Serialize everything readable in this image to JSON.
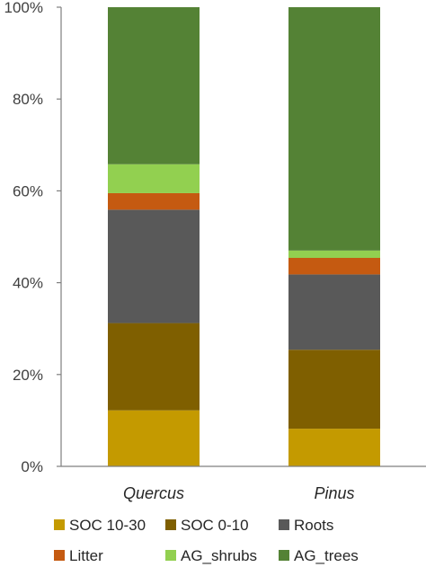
{
  "chart_data": {
    "type": "bar",
    "stacked": true,
    "normalized": true,
    "categories": [
      "Quercus",
      "Pinus"
    ],
    "series": [
      {
        "name": "SOC 10-30",
        "color": "#C49A00",
        "values": [
          12.2,
          8.2
        ]
      },
      {
        "name": "SOC 0-10",
        "color": "#7F5F00",
        "values": [
          19.0,
          17.2
        ]
      },
      {
        "name": "Roots",
        "color": "#595959",
        "values": [
          24.7,
          16.4
        ]
      },
      {
        "name": "Litter",
        "color": "#C55A11",
        "values": [
          3.6,
          3.6
        ]
      },
      {
        "name": "AG_shrubs",
        "color": "#92D050",
        "values": [
          6.3,
          1.6
        ]
      },
      {
        "name": "AG_trees",
        "color": "#548235",
        "values": [
          34.2,
          53.0
        ]
      }
    ],
    "yticks": [
      "0%",
      "20%",
      "40%",
      "60%",
      "80%",
      "100%"
    ],
    "ylim": [
      0,
      100
    ],
    "grid": false,
    "legend_position": "bottom"
  }
}
